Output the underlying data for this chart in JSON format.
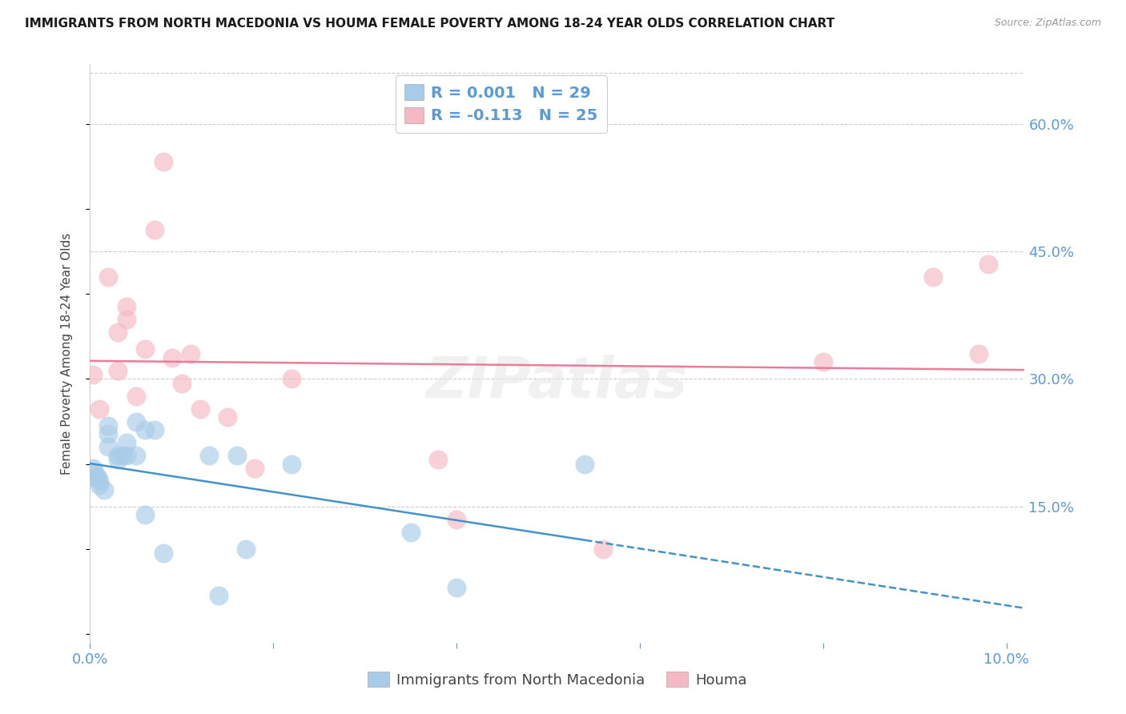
{
  "title": "IMMIGRANTS FROM NORTH MACEDONIA VS HOUMA FEMALE POVERTY AMONG 18-24 YEAR OLDS CORRELATION CHART",
  "source": "Source: ZipAtlas.com",
  "ylabel": "Female Poverty Among 18-24 Year Olds",
  "xlim": [
    0.0,
    0.102
  ],
  "ylim": [
    -0.01,
    0.67
  ],
  "yticks": [
    0.15,
    0.3,
    0.45,
    0.6
  ],
  "ytick_labels": [
    "15.0%",
    "30.0%",
    "45.0%",
    "60.0%"
  ],
  "xticks": [
    0.0,
    0.02,
    0.04,
    0.06,
    0.08,
    0.1
  ],
  "xtick_labels": [
    "0.0%",
    "",
    "",
    "",
    "",
    "10.0%"
  ],
  "legend_series1_label": "Immigrants from North Macedonia",
  "legend_series2_label": "Houma",
  "color1": "#a8cce8",
  "color2": "#f5b8c4",
  "line_color1": "#4393c8",
  "line_color2": "#e87d9a",
  "axis_label_color": "#5b9bd5",
  "text_color": "#333333",
  "background_color": "#ffffff",
  "grid_color": "#cccccc",
  "title_fontsize": 11,
  "source_fontsize": 9,
  "blue_x": [
    0.0003,
    0.0005,
    0.0007,
    0.0008,
    0.001,
    0.001,
    0.0015,
    0.002,
    0.002,
    0.002,
    0.003,
    0.003,
    0.0035,
    0.004,
    0.004,
    0.005,
    0.005,
    0.006,
    0.006,
    0.007,
    0.008,
    0.013,
    0.014,
    0.016,
    0.017,
    0.022,
    0.035,
    0.04,
    0.054
  ],
  "blue_y": [
    0.195,
    0.19,
    0.185,
    0.185,
    0.18,
    0.175,
    0.17,
    0.245,
    0.235,
    0.22,
    0.21,
    0.205,
    0.21,
    0.225,
    0.21,
    0.25,
    0.21,
    0.24,
    0.14,
    0.24,
    0.095,
    0.21,
    0.045,
    0.21,
    0.1,
    0.2,
    0.12,
    0.055,
    0.2
  ],
  "pink_x": [
    0.0003,
    0.001,
    0.002,
    0.003,
    0.003,
    0.004,
    0.004,
    0.005,
    0.006,
    0.007,
    0.008,
    0.009,
    0.01,
    0.011,
    0.012,
    0.015,
    0.018,
    0.022,
    0.038,
    0.04,
    0.056,
    0.08,
    0.092,
    0.097,
    0.098
  ],
  "pink_y": [
    0.305,
    0.265,
    0.42,
    0.355,
    0.31,
    0.385,
    0.37,
    0.28,
    0.335,
    0.475,
    0.555,
    0.325,
    0.295,
    0.33,
    0.265,
    0.255,
    0.195,
    0.3,
    0.205,
    0.135,
    0.1,
    0.32,
    0.42,
    0.33,
    0.435
  ],
  "blue_R": 0.001,
  "blue_N": 29,
  "pink_R": -0.113,
  "pink_N": 25
}
